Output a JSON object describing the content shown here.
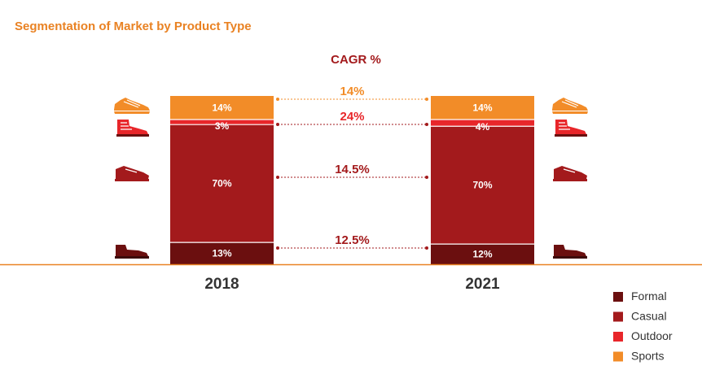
{
  "title": "Segmentation of Market by Product Type",
  "cagr_heading": "CAGR %",
  "colors": {
    "title": "#e98223",
    "Formal": "#6b0f0f",
    "Casual": "#a31a1c",
    "Outdoor": "#e8262a",
    "Sports": "#f28c28",
    "baseline": "#e98223",
    "year_text": "#333333"
  },
  "chart_data": {
    "type": "bar",
    "stacked": true,
    "categories": [
      "2018",
      "2021"
    ],
    "series": [
      {
        "name": "Formal",
        "values": [
          13,
          12
        ]
      },
      {
        "name": "Casual",
        "values": [
          70,
          70
        ]
      },
      {
        "name": "Outdoor",
        "values": [
          3,
          4
        ]
      },
      {
        "name": "Sports",
        "values": [
          14,
          14
        ]
      }
    ],
    "value_labels": {
      "Formal": [
        "13%",
        "12%"
      ],
      "Casual": [
        "70%",
        "70%"
      ],
      "Outdoor": [
        "3%",
        "4%"
      ],
      "Sports": [
        "14%",
        "14%"
      ]
    },
    "cagr": [
      {
        "series": "Sports",
        "label": "14%"
      },
      {
        "series": "Outdoor",
        "label": "24%"
      },
      {
        "series": "Casual",
        "label": "14.5%"
      },
      {
        "series": "Formal",
        "label": "12.5%"
      }
    ],
    "ylim": [
      0,
      100
    ],
    "legend_position": "bottom-right",
    "grid": false
  },
  "icons": {
    "Sports": "running-shoe-icon",
    "Outdoor": "hiking-boot-icon",
    "Casual": "sneaker-icon",
    "Formal": "dress-shoe-icon"
  }
}
